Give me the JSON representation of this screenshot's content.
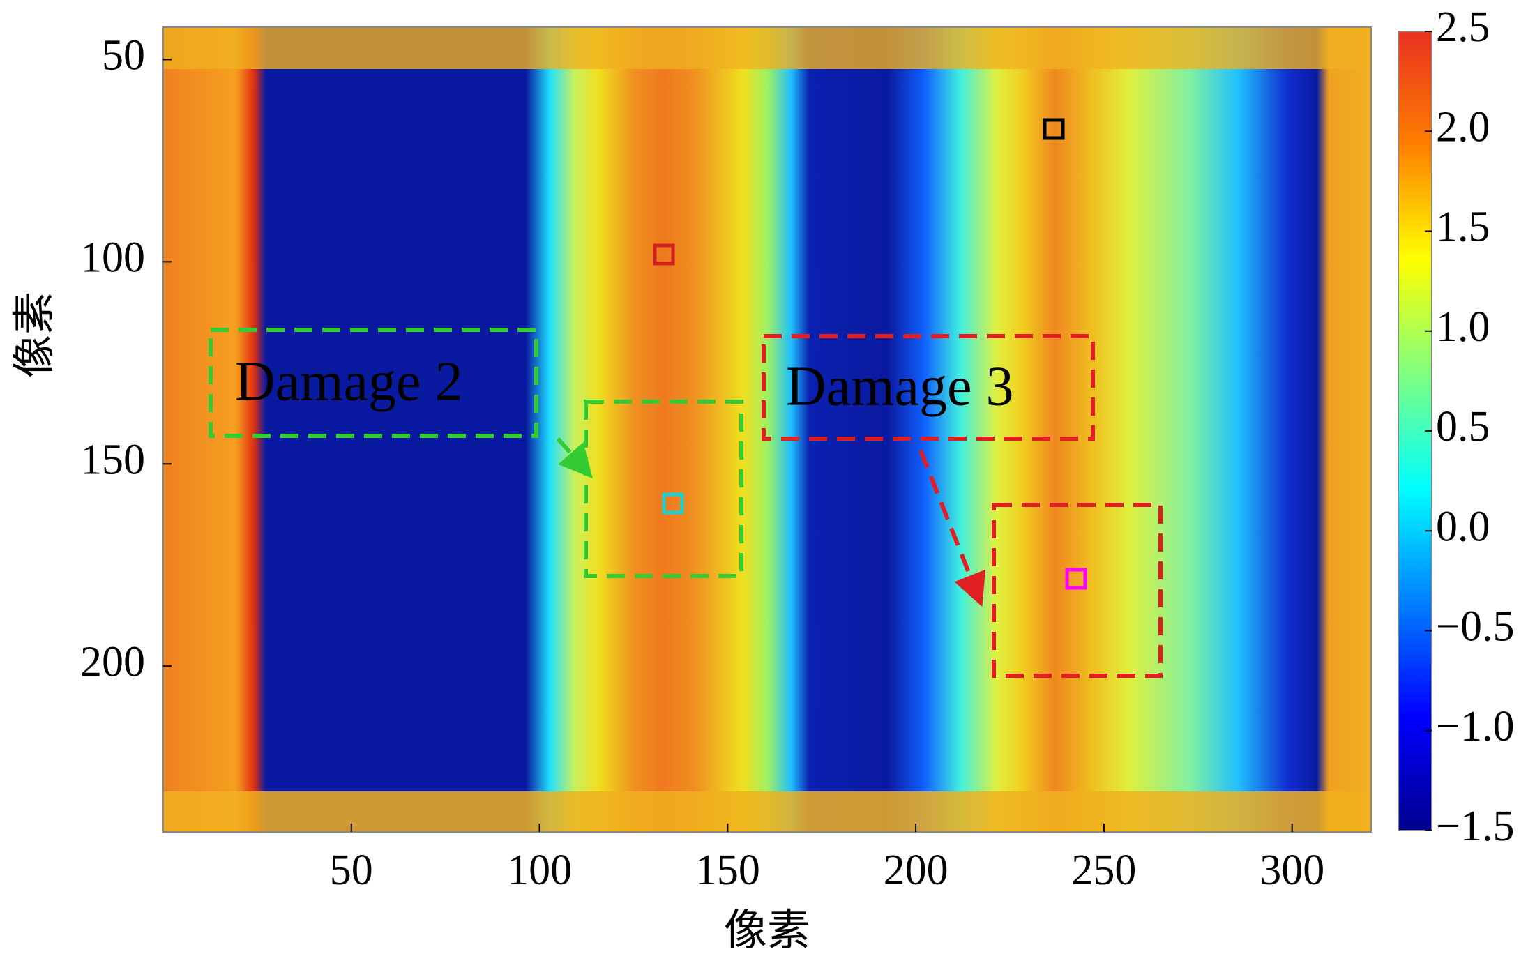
{
  "chart_data": {
    "type": "heatmap",
    "xlabel": "像素",
    "ylabel": "像素",
    "xlim": [
      0,
      321
    ],
    "xticks": [
      50,
      100,
      150,
      200,
      250,
      300
    ],
    "ylim": [
      42,
      241
    ],
    "yticks": [
      50,
      100,
      150,
      200
    ],
    "y_inverted": true,
    "colorbar": {
      "lim": [
        -1.5,
        2.5
      ],
      "colormap": "jet",
      "ticks": [
        2.5,
        {
          "value": 2,
          "label": "2.0"
        },
        1.5,
        {
          "value": 1,
          "label": "1.0"
        },
        0.5,
        {
          "value": 0,
          "label": "0.0"
        },
        {
          "value": -0.5,
          "label": "−0.5"
        },
        {
          "value": -1,
          "label": "−1.0"
        },
        {
          "value": -1.5,
          "label": "−1.5"
        }
      ]
    },
    "annotations": [
      {
        "text": "Damage 2",
        "color": "#33cc33"
      },
      {
        "text": "Damage 3",
        "color": "#e02020"
      }
    ]
  }
}
